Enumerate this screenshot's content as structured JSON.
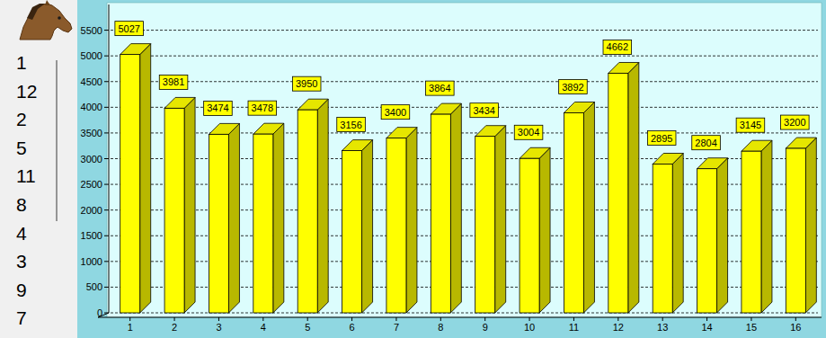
{
  "chart_data": {
    "type": "bar",
    "categories": [
      "1",
      "2",
      "3",
      "4",
      "5",
      "6",
      "7",
      "8",
      "9",
      "10",
      "11",
      "12",
      "13",
      "14",
      "15",
      "16"
    ],
    "values": [
      5027,
      3981,
      3474,
      3478,
      3950,
      3156,
      3400,
      3864,
      3434,
      3004,
      3892,
      4662,
      2895,
      2804,
      3145,
      3200
    ],
    "color": "#ffff00",
    "ylim": [
      0,
      6000
    ],
    "yticks": [
      0,
      500,
      1000,
      1500,
      2000,
      2500,
      3000,
      3500,
      4000,
      4500,
      5000,
      5500
    ],
    "grid": true,
    "data_labels": true
  },
  "sidebar": {
    "ranking": [
      "1",
      "12",
      "2",
      "5",
      "11",
      "8",
      "4",
      "3",
      "9",
      "7"
    ]
  }
}
